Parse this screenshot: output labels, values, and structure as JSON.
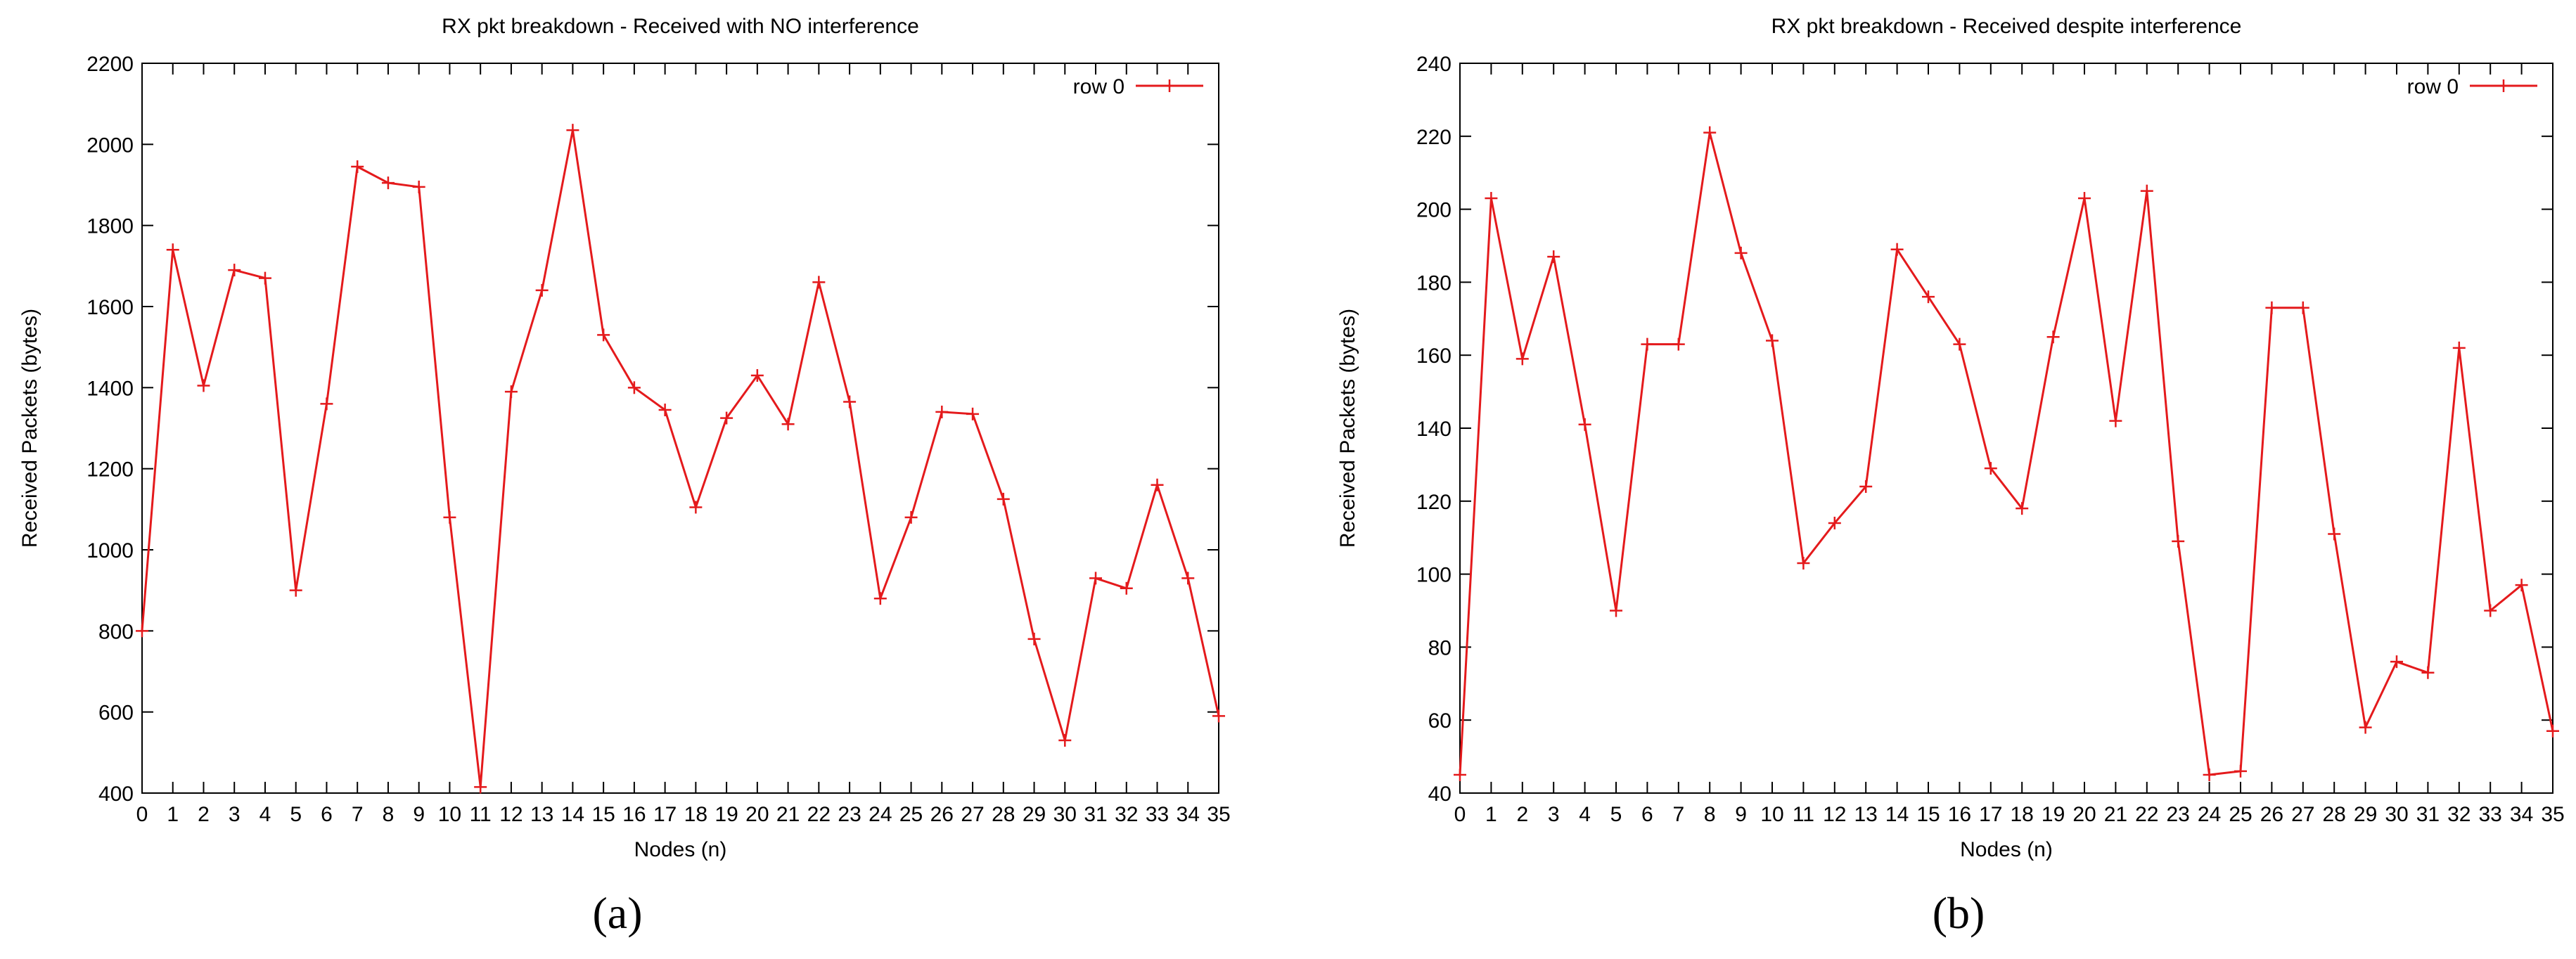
{
  "chart_data": [
    {
      "type": "line",
      "title": "RX pkt breakdown - Received with NO interference",
      "xlabel": "Nodes (n)",
      "ylabel": "Received Packets (bytes)",
      "xlim": [
        0,
        35
      ],
      "ylim": [
        400,
        2200
      ],
      "xticks": [
        0,
        1,
        2,
        3,
        4,
        5,
        6,
        7,
        8,
        9,
        10,
        11,
        12,
        13,
        14,
        15,
        16,
        17,
        18,
        19,
        20,
        21,
        22,
        23,
        24,
        25,
        26,
        27,
        28,
        29,
        30,
        31,
        32,
        33,
        34,
        35
      ],
      "yticks": [
        400,
        600,
        800,
        1000,
        1200,
        1400,
        1600,
        1800,
        2000,
        2200
      ],
      "grid": false,
      "legend": "top-right",
      "caption": "(a)",
      "color": "#e41a1c",
      "series": [
        {
          "name": "row 0",
          "x": [
            0,
            1,
            2,
            3,
            4,
            5,
            6,
            7,
            8,
            9,
            10,
            11,
            12,
            13,
            14,
            15,
            16,
            17,
            18,
            19,
            20,
            21,
            22,
            23,
            24,
            25,
            26,
            27,
            28,
            29,
            30,
            31,
            32,
            33,
            34,
            35
          ],
          "values": [
            800,
            1740,
            1405,
            1690,
            1670,
            900,
            1360,
            1945,
            1905,
            1895,
            1080,
            415,
            1390,
            1640,
            2035,
            1530,
            1400,
            1345,
            1105,
            1325,
            1430,
            1310,
            1660,
            1365,
            880,
            1080,
            1340,
            1335,
            1125,
            780,
            530,
            930,
            905,
            1160,
            930,
            590
          ]
        }
      ]
    },
    {
      "type": "line",
      "title": "RX pkt breakdown - Received despite interference",
      "xlabel": "Nodes (n)",
      "ylabel": "Received Packets (bytes)",
      "xlim": [
        0,
        35
      ],
      "ylim": [
        40,
        240
      ],
      "xticks": [
        0,
        1,
        2,
        3,
        4,
        5,
        6,
        7,
        8,
        9,
        10,
        11,
        12,
        13,
        14,
        15,
        16,
        17,
        18,
        19,
        20,
        21,
        22,
        23,
        24,
        25,
        26,
        27,
        28,
        29,
        30,
        31,
        32,
        33,
        34,
        35
      ],
      "yticks": [
        40,
        60,
        80,
        100,
        120,
        140,
        160,
        180,
        200,
        220,
        240
      ],
      "grid": false,
      "legend": "top-right",
      "caption": "(b)",
      "color": "#e41a1c",
      "series": [
        {
          "name": "row 0",
          "x": [
            0,
            1,
            2,
            3,
            4,
            5,
            6,
            7,
            8,
            9,
            10,
            11,
            12,
            13,
            14,
            15,
            16,
            17,
            18,
            19,
            20,
            21,
            22,
            23,
            24,
            25,
            26,
            27,
            28,
            29,
            30,
            31,
            32,
            33,
            34,
            35
          ],
          "values": [
            45,
            203,
            159,
            187,
            141,
            90,
            163,
            163,
            221,
            188,
            164,
            103,
            114,
            124,
            189,
            176,
            163,
            129,
            118,
            165,
            203,
            142,
            205,
            109,
            45,
            46,
            173,
            173,
            111,
            58,
            76,
            73,
            162,
            90,
            97,
            57
          ]
        }
      ]
    }
  ]
}
